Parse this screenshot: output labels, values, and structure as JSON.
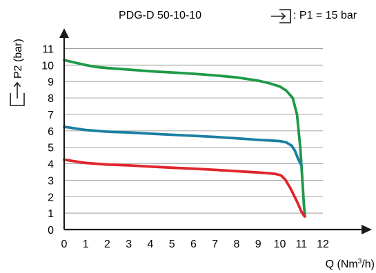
{
  "chart_data": {
    "type": "line",
    "title": "PDG-D 50-10-10",
    "inlet_label": ": P1 = 15 bar",
    "xlabel": {
      "prefix": "Q (Nm",
      "sup": "3",
      "suffix": "/h)"
    },
    "ylabel": "P2 (bar)",
    "xlim": [
      0,
      12
    ],
    "ylim": [
      0,
      11
    ],
    "x_ticks": [
      "0",
      "1",
      "2",
      "3",
      "4",
      "5",
      "6",
      "7",
      "8",
      "9",
      "10",
      "11",
      "12"
    ],
    "y_ticks": [
      "1",
      "2",
      "3",
      "4",
      "5",
      "6",
      "7",
      "8",
      "9",
      "10",
      "11"
    ],
    "grid": "horizontal",
    "colors": {
      "green": "#1e9a48",
      "blue": "#1a7fa3",
      "red": "#e0262b",
      "axis": "#1a1a1a",
      "grid": "#9a9a9a"
    },
    "series": [
      {
        "color": "#1e9a48",
        "x": [
          0,
          0.5,
          1,
          1.5,
          2,
          3,
          4,
          5,
          6,
          7,
          8,
          9,
          9.5,
          10,
          10.3,
          10.6,
          10.8,
          10.95,
          11.05,
          11.12,
          11.17
        ],
        "y": [
          10.3,
          10.15,
          10.0,
          9.88,
          9.82,
          9.72,
          9.62,
          9.55,
          9.47,
          9.37,
          9.25,
          9.05,
          8.9,
          8.7,
          8.45,
          8.0,
          7.0,
          5.0,
          3.0,
          1.5,
          0.8
        ]
      },
      {
        "color": "#1a7fa3",
        "x": [
          0,
          0.5,
          1,
          2,
          3,
          4,
          5,
          6,
          7,
          8,
          9,
          9.5,
          10,
          10.3,
          10.55,
          10.7,
          10.85,
          11.0
        ],
        "y": [
          6.25,
          6.15,
          6.05,
          5.95,
          5.9,
          5.83,
          5.76,
          5.7,
          5.63,
          5.55,
          5.45,
          5.42,
          5.38,
          5.3,
          5.1,
          4.8,
          4.3,
          3.9
        ]
      },
      {
        "color": "#e0262b",
        "x": [
          0,
          0.5,
          1,
          2,
          3,
          4,
          5,
          6,
          7,
          8,
          9,
          9.5,
          9.8,
          10.05,
          10.25,
          10.5,
          10.8,
          11.0,
          11.15
        ],
        "y": [
          4.25,
          4.15,
          4.05,
          3.95,
          3.9,
          3.83,
          3.76,
          3.7,
          3.63,
          3.55,
          3.47,
          3.42,
          3.38,
          3.3,
          3.05,
          2.5,
          1.7,
          1.1,
          0.8
        ]
      }
    ]
  }
}
